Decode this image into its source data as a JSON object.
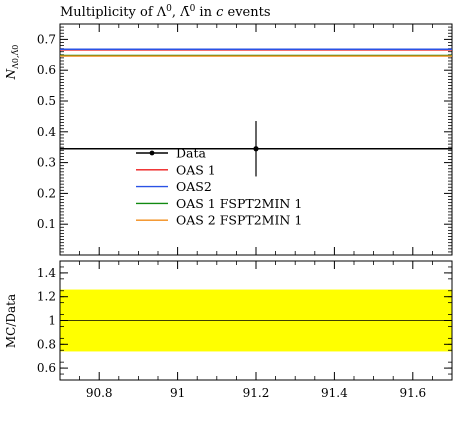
{
  "chart_data": {
    "type": "line",
    "title": "Multiplicity of Λ⁰, Λ̄⁰ in c events",
    "title_parts": {
      "prefix": "Multiplicity of ",
      "lambda1": "Λ",
      "sep": ", ",
      "lambda2": "Λ̄",
      "suffix": " in ",
      "c": "c",
      "events": " events",
      "sup0": "0"
    },
    "ylabel": "N_{Λ0,Λ̄0}",
    "ylabel_parts": {
      "n": "N",
      "sub": "Λ0,Λ̄0"
    },
    "xlim": [
      90.7,
      91.7
    ],
    "ylim": [
      0.0,
      0.75
    ],
    "x_ticks": [
      90.8,
      91.0,
      91.2,
      91.4,
      91.6
    ],
    "x_tick_labels": [
      "90.8",
      "91",
      "91.2",
      "91.4",
      "91.6"
    ],
    "y_ticks": [
      0.1,
      0.2,
      0.3,
      0.4,
      0.5,
      0.6,
      0.7
    ],
    "y_tick_labels": [
      "0.1",
      "0.2",
      "0.3",
      "0.4",
      "0.5",
      "0.6",
      "0.7"
    ],
    "data_point": {
      "name": "Data",
      "x": 91.2,
      "y": 0.345,
      "yerr": 0.09
    },
    "series": [
      {
        "name": "Data",
        "color": "#000000",
        "y": 0.345
      },
      {
        "name": "OAS 1",
        "color": "#ee1c1c",
        "y": 0.666
      },
      {
        "name": "OAS2",
        "color": "#2a52e5",
        "y": 0.668
      },
      {
        "name": "OAS 1 FSPT2MIN 1",
        "color": "#118a11",
        "y": 0.648
      },
      {
        "name": "OAS 2 FSPT2MIN 1",
        "color": "#f28c1a",
        "y": 0.646
      }
    ],
    "legend_position": "center-left",
    "ratio": {
      "ylabel": "MC/Data",
      "ylim": [
        0.5,
        1.5
      ],
      "y_ticks": [
        0.6,
        0.8,
        1.0,
        1.2,
        1.4
      ],
      "y_tick_labels": [
        "0.6",
        "0.8",
        "1",
        "1.2",
        "1.4"
      ],
      "band": [
        0.74,
        1.26
      ],
      "band_color": "#ffff00",
      "reference": 1.0
    }
  }
}
